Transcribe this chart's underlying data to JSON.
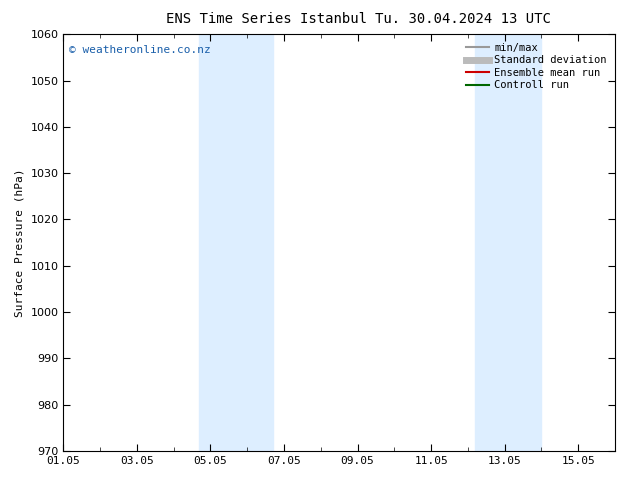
{
  "title_left": "ENS Time Series Istanbul",
  "title_right": "Tu. 30.04.2024 13 UTC",
  "ylabel": "Surface Pressure (hPa)",
  "ylim": [
    970,
    1060
  ],
  "yticks": [
    970,
    980,
    990,
    1000,
    1010,
    1020,
    1030,
    1040,
    1050,
    1060
  ],
  "xlim_start": 0,
  "xlim_end": 15,
  "xtick_positions": [
    0,
    2,
    4,
    6,
    8,
    10,
    12,
    14
  ],
  "xtick_labels": [
    "01.05",
    "03.05",
    "05.05",
    "07.05",
    "09.05",
    "11.05",
    "13.05",
    "15.05"
  ],
  "shaded_bands": [
    {
      "x_start": 3.7,
      "x_end": 5.7
    },
    {
      "x_start": 11.2,
      "x_end": 13.0
    }
  ],
  "shaded_color": "#ddeeff",
  "watermark_text": "© weatheronline.co.nz",
  "watermark_color": "#1a5faa",
  "legend_items": [
    {
      "label": "min/max",
      "color": "#999999",
      "lw": 1.5
    },
    {
      "label": "Standard deviation",
      "color": "#bbbbbb",
      "lw": 5
    },
    {
      "label": "Ensemble mean run",
      "color": "#cc0000",
      "lw": 1.5
    },
    {
      "label": "Controll run",
      "color": "#006600",
      "lw": 1.5
    }
  ],
  "bg_color": "#ffffff",
  "plot_bg_color": "#ffffff",
  "title_fontsize": 10,
  "axis_label_fontsize": 8,
  "tick_fontsize": 8,
  "legend_fontsize": 7.5,
  "watermark_fontsize": 8
}
